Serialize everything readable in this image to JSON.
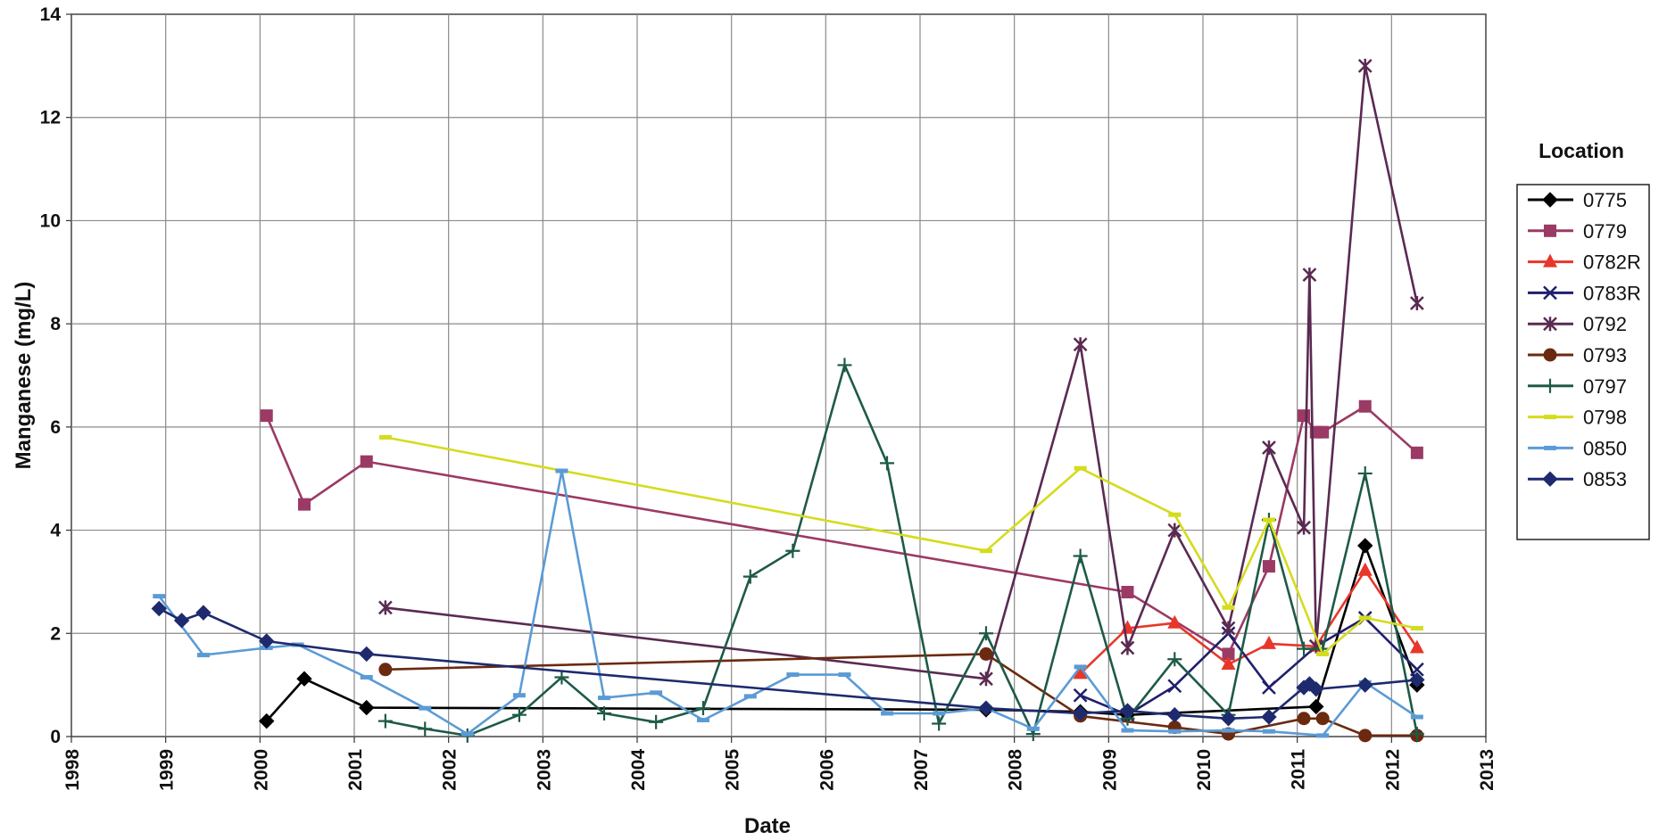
{
  "chart_data": {
    "type": "line",
    "xlabel": "Date",
    "ylabel": "Manganese (mg/L)",
    "xlim": [
      1998,
      2013
    ],
    "ylim": [
      0,
      14
    ],
    "x_ticks": [
      "1998",
      "1999",
      "2000",
      "2001",
      "2002",
      "2003",
      "2004",
      "2005",
      "2006",
      "2007",
      "2008",
      "2009",
      "2010",
      "2011",
      "2012",
      "2013"
    ],
    "y_ticks": [
      "0",
      "2",
      "4",
      "6",
      "8",
      "10",
      "12",
      "14"
    ],
    "grid": true,
    "legend_title": "Location",
    "legend_position": "right",
    "series": [
      {
        "name": "0775",
        "color": "#000000",
        "marker": "diamond",
        "x": [
          2000.07,
          2000.47,
          2001.13,
          2007.7,
          2008.7,
          2009.2,
          2011.2,
          2011.72,
          2012.27
        ],
        "y": [
          0.3,
          1.12,
          0.56,
          0.52,
          0.48,
          0.42,
          0.58,
          3.7,
          1.0
        ]
      },
      {
        "name": "0779",
        "color": "#9b3a64",
        "marker": "square",
        "x": [
          2000.07,
          2000.47,
          2001.13,
          2009.2,
          2010.27,
          2010.7,
          2011.07,
          2011.2,
          2011.27,
          2011.72,
          2012.27
        ],
        "y": [
          6.22,
          4.5,
          5.33,
          2.8,
          1.6,
          3.3,
          6.22,
          5.9,
          5.9,
          6.4,
          5.5
        ]
      },
      {
        "name": "0782R",
        "color": "#e8362a",
        "marker": "triangle",
        "x": [
          2008.7,
          2009.2,
          2009.7,
          2010.27,
          2010.7,
          2011.2,
          2011.72,
          2012.27
        ],
        "y": [
          1.22,
          2.1,
          2.2,
          1.4,
          1.8,
          1.75,
          3.22,
          1.72
        ]
      },
      {
        "name": "0783R",
        "color": "#1f1f6e",
        "marker": "x",
        "x": [
          2008.7,
          2009.2,
          2009.7,
          2010.27,
          2010.7,
          2011.2,
          2011.72,
          2012.27
        ],
        "y": [
          0.8,
          0.42,
          0.98,
          2.0,
          0.95,
          1.75,
          2.3,
          1.3
        ]
      },
      {
        "name": "0792",
        "color": "#5a2a52",
        "marker": "star",
        "x": [
          2001.33,
          2007.7,
          2008.7,
          2009.2,
          2009.7,
          2010.27,
          2010.7,
          2011.07,
          2011.13,
          2011.2,
          2011.72,
          2012.27
        ],
        "y": [
          2.5,
          1.12,
          7.6,
          1.72,
          4.0,
          2.1,
          5.6,
          4.05,
          8.95,
          1.75,
          13.0,
          8.4
        ]
      },
      {
        "name": "0793",
        "color": "#6b2a10",
        "marker": "circle",
        "x": [
          2001.33,
          2007.7,
          2008.7,
          2009.7,
          2010.27,
          2011.07,
          2011.27,
          2011.72,
          2012.27
        ],
        "y": [
          1.3,
          1.6,
          0.4,
          0.18,
          0.05,
          0.35,
          0.35,
          0.02,
          0.02
        ]
      },
      {
        "name": "0797",
        "color": "#1e5a48",
        "marker": "plus",
        "x": [
          2001.33,
          2001.75,
          2002.2,
          2002.75,
          2003.2,
          2003.65,
          2004.2,
          2004.7,
          2005.2,
          2005.65,
          2006.2,
          2006.65,
          2007.2,
          2007.7,
          2008.2,
          2008.7,
          2009.2,
          2009.7,
          2010.27,
          2010.7,
          2011.07,
          2011.27,
          2011.72,
          2012.27
        ],
        "y": [
          0.3,
          0.15,
          0.02,
          0.42,
          1.15,
          0.45,
          0.28,
          0.55,
          3.1,
          3.6,
          7.2,
          5.3,
          0.25,
          2.0,
          0.05,
          3.5,
          0.35,
          1.5,
          0.42,
          4.2,
          1.7,
          1.7,
          5.1,
          0.05
        ]
      },
      {
        "name": "0798",
        "color": "#d4dc1e",
        "marker": "dash",
        "x": [
          2001.33,
          2007.7,
          2008.7,
          2009.7,
          2010.27,
          2010.7,
          2011.27,
          2011.72,
          2012.27
        ],
        "y": [
          5.8,
          3.6,
          5.2,
          4.3,
          2.5,
          4.2,
          1.6,
          2.3,
          2.1
        ]
      },
      {
        "name": "0850",
        "color": "#5b9bd5",
        "marker": "dash",
        "x": [
          1998.93,
          1999.4,
          2000.07,
          2000.4,
          2001.13,
          2001.75,
          2002.2,
          2002.75,
          2003.2,
          2003.65,
          2004.2,
          2004.7,
          2005.2,
          2005.65,
          2006.2,
          2006.65,
          2007.2,
          2007.7,
          2008.2,
          2008.7,
          2009.2,
          2009.7,
          2010.27,
          2010.7,
          2011.27,
          2011.72,
          2012.27
        ],
        "y": [
          2.72,
          1.58,
          1.72,
          1.78,
          1.15,
          0.55,
          0.05,
          0.8,
          5.15,
          0.75,
          0.85,
          0.32,
          0.78,
          1.2,
          1.2,
          0.45,
          0.45,
          0.55,
          0.15,
          1.35,
          0.12,
          0.1,
          0.12,
          0.1,
          0.02,
          1.05,
          0.38
        ]
      },
      {
        "name": "0853",
        "color": "#1e2a6e",
        "marker": "diamond",
        "x": [
          1998.93,
          1999.17,
          1999.4,
          2000.07,
          2001.13,
          2007.7,
          2008.7,
          2009.2,
          2009.7,
          2010.27,
          2010.7,
          2011.07,
          2011.13,
          2011.2,
          2011.72,
          2012.27
        ],
        "y": [
          2.48,
          2.25,
          2.4,
          1.85,
          1.6,
          0.55,
          0.45,
          0.5,
          0.42,
          0.35,
          0.38,
          0.95,
          1.02,
          0.92,
          1.0,
          1.1
        ]
      }
    ]
  }
}
